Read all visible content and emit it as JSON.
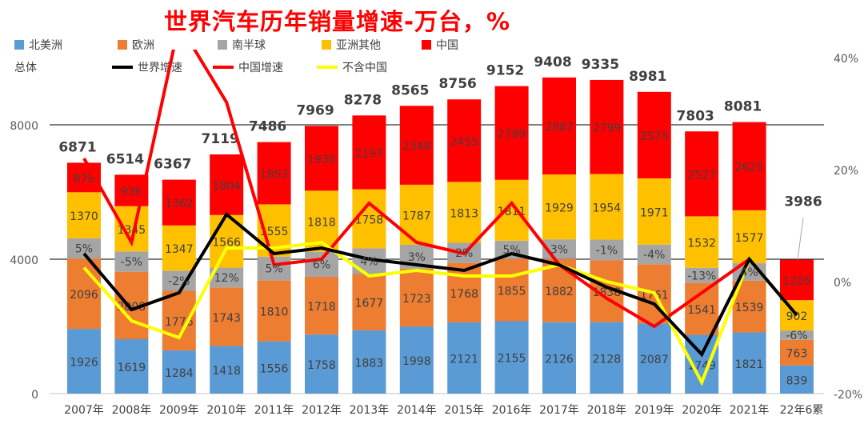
{
  "chart_data": {
    "type": "bar",
    "stacked": true,
    "title": "世界汽车历年销量增速-万台，%",
    "categories": [
      "2007年",
      "2008年",
      "2009年",
      "2010年",
      "2011年",
      "2012年",
      "2013年",
      "2014年",
      "2015年",
      "2016年",
      "2017年",
      "2018年",
      "2019年",
      "2020年",
      "2021年",
      "22年6累"
    ],
    "y_left": {
      "range": [
        0,
        10000
      ],
      "ticks": [
        "0",
        "4000",
        "8000"
      ]
    },
    "y_right": {
      "range": [
        -20,
        40
      ],
      "unit": "%",
      "ticks": [
        "-20%",
        "0%",
        "20%",
        "40%"
      ]
    },
    "grid": true,
    "legend_placement": "top",
    "series": [
      {
        "name": "北美洲",
        "color": "#5b9bd5",
        "values": [
          1926,
          1619,
          1284,
          1418,
          1556,
          1758,
          1883,
          1998,
          2121,
          2155,
          2126,
          2128,
          2087,
          1749,
          1821,
          839
        ],
        "labeled": true
      },
      {
        "name": "欧洲",
        "color": "#ed7d31",
        "values": [
          2096,
          2008,
          1776,
          1743,
          1810,
          1718,
          1677,
          1723,
          1768,
          1855,
          1882,
          1838,
          1761,
          1541,
          1539,
          763
        ],
        "labeled": true
      },
      {
        "name": "南半球",
        "color": "#a5a5a5",
        "values": [
          601,
          606,
          598,
          588,
          712,
          745,
          763,
          709,
          599,
          542,
          584,
          616,
          587,
          454,
          519,
          277
        ],
        "labeled": false
      },
      {
        "name": "亚洲其他",
        "color": "#ffc000",
        "values": [
          1370,
          1345,
          1347,
          1566,
          1555,
          1818,
          1758,
          1787,
          1813,
          1811,
          1929,
          1954,
          1971,
          1532,
          1577,
          902
        ],
        "labeled": true
      },
      {
        "name": "中国",
        "color": "#ff0000",
        "values": [
          878,
          936,
          1362,
          1804,
          1853,
          1930,
          2197,
          2348,
          2455,
          2789,
          2887,
          2799,
          2575,
          2527,
          2625,
          1205
        ],
        "labeled": true
      }
    ],
    "totals": {
      "name": "总体",
      "values": [
        6871,
        6514,
        6367,
        7119,
        7486,
        7969,
        8278,
        8565,
        8756,
        9152,
        9408,
        9335,
        8981,
        7803,
        8081,
        3986
      ]
    },
    "lines": [
      {
        "name": "世界增速",
        "color": "#000000",
        "axis": "right",
        "values": [
          5,
          -5,
          -2,
          12,
          5,
          6,
          4,
          3,
          2,
          5,
          3,
          -1,
          -4,
          -13,
          4,
          -6
        ],
        "labels": [
          "5%",
          "-5%",
          "-2%",
          "12%",
          "5%",
          "6%",
          "4%",
          "3%",
          "2%",
          "5%",
          "3%",
          "-1%",
          "-4%",
          "-13%",
          "4%",
          "-6%"
        ]
      },
      {
        "name": "中国增速",
        "color": "#ff0000",
        "axis": "right",
        "values": [
          22,
          7,
          46,
          32,
          3,
          4,
          14,
          7,
          5,
          14,
          3,
          -3,
          -8,
          -2,
          4,
          -6
        ]
      },
      {
        "name": "不含中国",
        "color": "#ffff00",
        "axis": "right",
        "values": [
          2.5,
          -7,
          -10,
          6,
          6,
          7,
          1,
          2,
          1,
          1,
          3,
          0,
          -2,
          -18,
          4,
          -6
        ]
      }
    ]
  }
}
